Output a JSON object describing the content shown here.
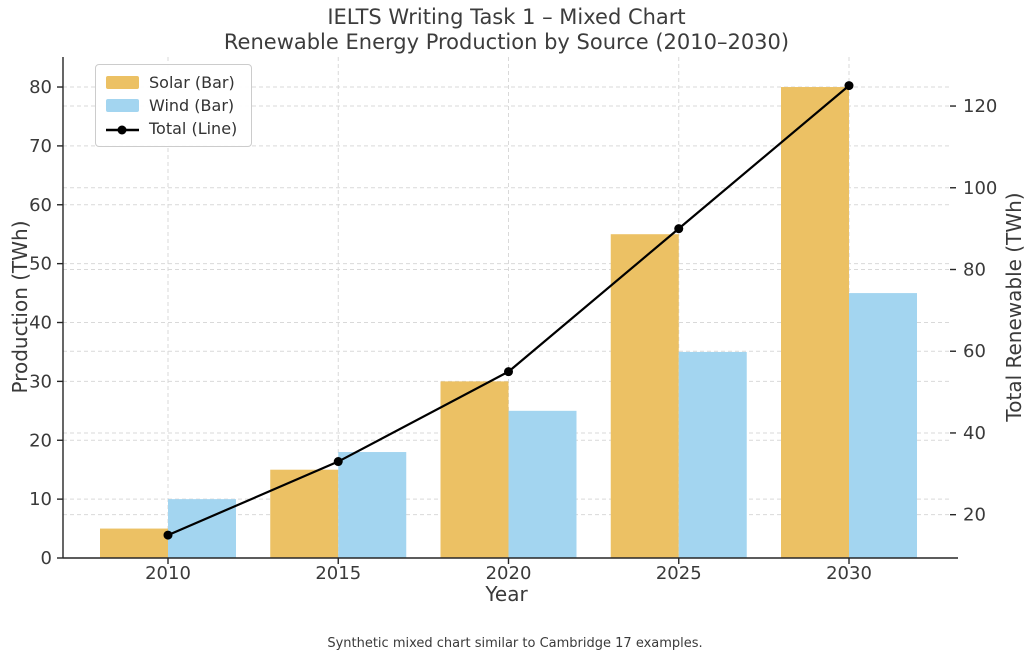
{
  "figure": {
    "title_line1": "IELTS Writing Task 1 – Mixed Chart",
    "title_line2": "Renewable Energy Production by Source (2010–2030)",
    "caption": "Synthetic mixed chart similar to Cambridge 17 examples."
  },
  "chart_data": {
    "type": "mixed-bar-line",
    "title": "IELTS Writing Task 1 – Mixed Chart — Renewable Energy Production by Source (2010–2030)",
    "categories": [
      "2010",
      "2015",
      "2020",
      "2025",
      "2030"
    ],
    "series": [
      {
        "name": "Solar (Bar)",
        "type": "bar",
        "axis": "left",
        "color": "#ECC164",
        "values": [
          5,
          15,
          30,
          55,
          80
        ]
      },
      {
        "name": "Wind (Bar)",
        "type": "bar",
        "axis": "left",
        "color": "#A3D5F0",
        "values": [
          10,
          18,
          25,
          35,
          45
        ]
      },
      {
        "name": "Total (Line)",
        "type": "line",
        "axis": "right",
        "color": "#000000",
        "values": [
          15,
          33,
          55,
          90,
          125
        ]
      }
    ],
    "xlabel": "Year",
    "left_axis": {
      "label": "Production (TWh)",
      "ticks": [
        0,
        10,
        20,
        30,
        40,
        50,
        60,
        70,
        80
      ],
      "range": [
        0,
        85.1
      ]
    },
    "right_axis": {
      "label": "Total Renewable (TWh)",
      "ticks": [
        20,
        40,
        60,
        80,
        100,
        120
      ],
      "range": [
        9.4,
        132.0
      ]
    },
    "legend": {
      "position": "upper-left",
      "entries": [
        "Solar (Bar)",
        "Wind (Bar)",
        "Total (Line)"
      ]
    },
    "grid": {
      "dashed": true,
      "color": "#d9d9d9"
    }
  }
}
